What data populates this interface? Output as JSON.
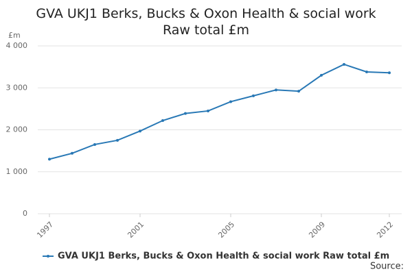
{
  "chart_data": {
    "type": "line",
    "title": "GVA UKJ1 Berks, Bucks & Oxon Health & social work Raw total £m",
    "y_label": "£m",
    "source": "Source:",
    "x": [
      1997,
      1998,
      1999,
      2000,
      2001,
      2002,
      2003,
      2004,
      2005,
      2006,
      2007,
      2008,
      2009,
      2010,
      2011,
      2012
    ],
    "series": [
      {
        "name": "GVA UKJ1 Berks, Bucks & Oxon Health & social work Raw total £m",
        "color": "#2878b5",
        "values": [
          1300,
          1440,
          1650,
          1750,
          1970,
          2220,
          2390,
          2450,
          2670,
          2810,
          2950,
          2920,
          3300,
          3560,
          3380,
          3360
        ]
      }
    ],
    "xlim": [
      1997,
      2012
    ],
    "xticks": [
      1997,
      2001,
      2005,
      2009,
      2012
    ],
    "ylim": [
      0,
      4000
    ],
    "yticks": [
      0,
      {
        "value": 1000,
        "label": "1 000"
      },
      {
        "value": 2000,
        "label": "2 000"
      },
      {
        "value": 3000,
        "label": "3 000"
      },
      {
        "value": 4000,
        "label": "4 000"
      }
    ],
    "grid": true
  }
}
